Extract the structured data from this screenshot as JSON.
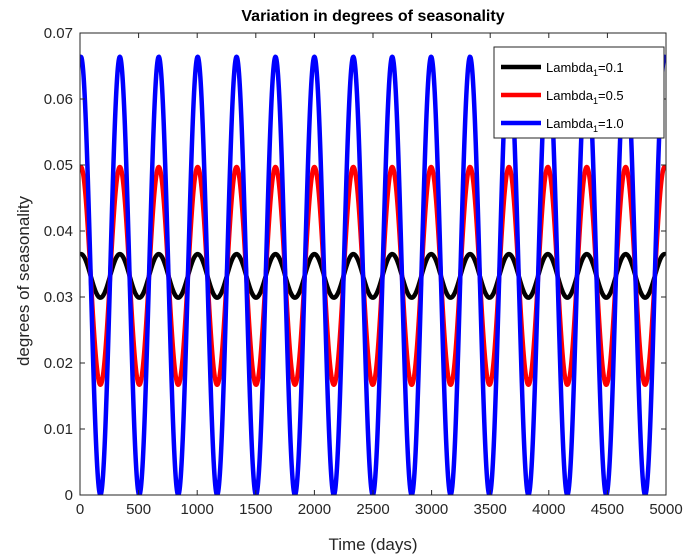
{
  "chart_data": {
    "type": "line",
    "title": "Variation in degrees of seasonality",
    "xlabel": "Time (days)",
    "ylabel": "degrees of seasonality",
    "xlim": [
      0,
      5000
    ],
    "ylim": [
      0,
      0.07
    ],
    "xticks": [
      0,
      500,
      1000,
      1500,
      2000,
      2500,
      3000,
      3500,
      4000,
      4500,
      5000
    ],
    "xtick_labels": [
      "0",
      "500",
      "1000",
      "1500",
      "2000",
      "2500",
      "3000",
      "3500",
      "4000",
      "4500",
      "5000"
    ],
    "yticks": [
      0,
      0.01,
      0.02,
      0.03,
      0.04,
      0.05,
      0.06,
      0.07
    ],
    "ytick_labels": [
      "0",
      "0.01",
      "0.02",
      "0.03",
      "0.04",
      "0.05",
      "0.06",
      "0.07"
    ],
    "grid": false,
    "legend_position": "top-right",
    "period_days": 332,
    "series": [
      {
        "legend_main": "Lambda",
        "legend_sub": "1",
        "legend_value": "=0.1",
        "color": "#000000",
        "mean": 0.0332,
        "amplitude": 0.0033,
        "phase_day": 8
      },
      {
        "legend_main": "Lambda",
        "legend_sub": "1",
        "legend_value": "=0.5",
        "color": "#ff0000",
        "mean": 0.0332,
        "amplitude": 0.0165,
        "phase_day": 8
      },
      {
        "legend_main": "Lambda",
        "legend_sub": "1",
        "legend_value": "=1.0",
        "color": "#0000ff",
        "mean": 0.0332,
        "amplitude": 0.0332,
        "phase_day": 8
      }
    ]
  }
}
